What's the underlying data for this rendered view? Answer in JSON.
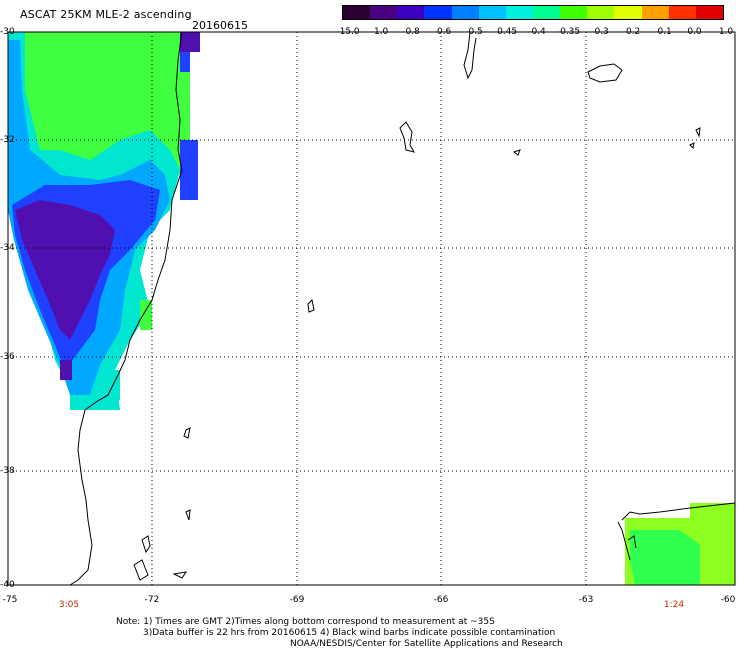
{
  "header": {
    "title": "ASCAT 25KM MLE-2 ascending",
    "date": "20160615"
  },
  "colorbar": {
    "labels": [
      "-15.0",
      "-1.0",
      "-0.8",
      "-0.6",
      "-0.5",
      "-0.45",
      "-0.4",
      "-0.35",
      "-0.3",
      "-0.2",
      "-0.1",
      "0.0",
      "1.0"
    ],
    "colors": [
      "#2a0030",
      "#4a0080",
      "#3b00c0",
      "#0033ff",
      "#0080ff",
      "#00c0ff",
      "#00f0e0",
      "#00ff90",
      "#40ff00",
      "#a0ff00",
      "#e0ff00",
      "#ffa000",
      "#ff3000",
      "#e00000"
    ]
  },
  "axes": {
    "lat_labels": [
      "-30",
      "-32",
      "-34",
      "-36",
      "-38",
      "-40"
    ],
    "lon_labels": [
      "-75",
      "-72",
      "-69",
      "-66",
      "-63",
      "-60"
    ]
  },
  "times": {
    "left": "3:05",
    "right": "1:24"
  },
  "notes": {
    "line1": "Note: 1) Times are GMT 2)Times along bottom correspond to measurement at ~35S",
    "line2": "3)Data buffer is 22 hrs from 20160615 4) Black wind barbs indicate possible contamination",
    "line3": "NOAA/NESDIS/Center for Satellite Applications and Research"
  }
}
